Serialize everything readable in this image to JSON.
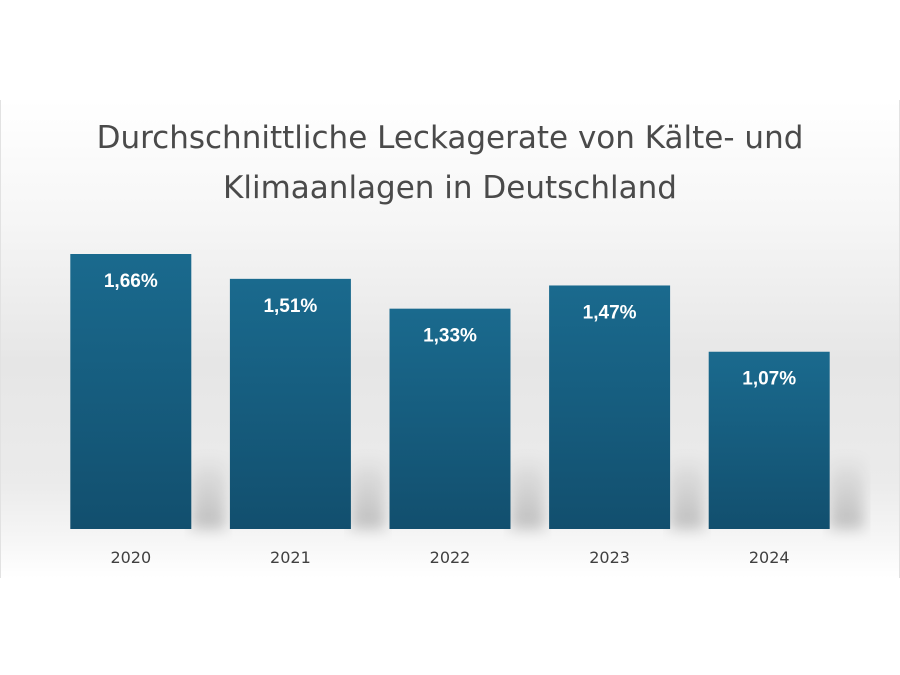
{
  "chart_data": {
    "type": "bar",
    "title": "Durchschnittliche Leckagerate von Kälte- und Klimaanlagen in Deutschland",
    "title_lines": [
      "Durchschnittliche Leckagerate von Kälte- und",
      "Klimaanlagen in Deutschland"
    ],
    "categories": [
      "2020",
      "2021",
      "2022",
      "2023",
      "2024"
    ],
    "values": [
      1.66,
      1.51,
      1.33,
      1.47,
      1.07
    ],
    "value_labels": [
      "1,66%",
      "1,51%",
      "1,33%",
      "1,47%",
      "1,07%"
    ],
    "xlabel": "",
    "ylabel": "",
    "ylim": [
      0,
      1.66
    ],
    "grid": false,
    "legend": "none",
    "colors": {
      "bar_top": "#1a6a8e",
      "bar_bottom": "#124f6e",
      "bar_label": "#ffffff",
      "tick_label": "#404040",
      "title": "#4a4a4a"
    }
  }
}
